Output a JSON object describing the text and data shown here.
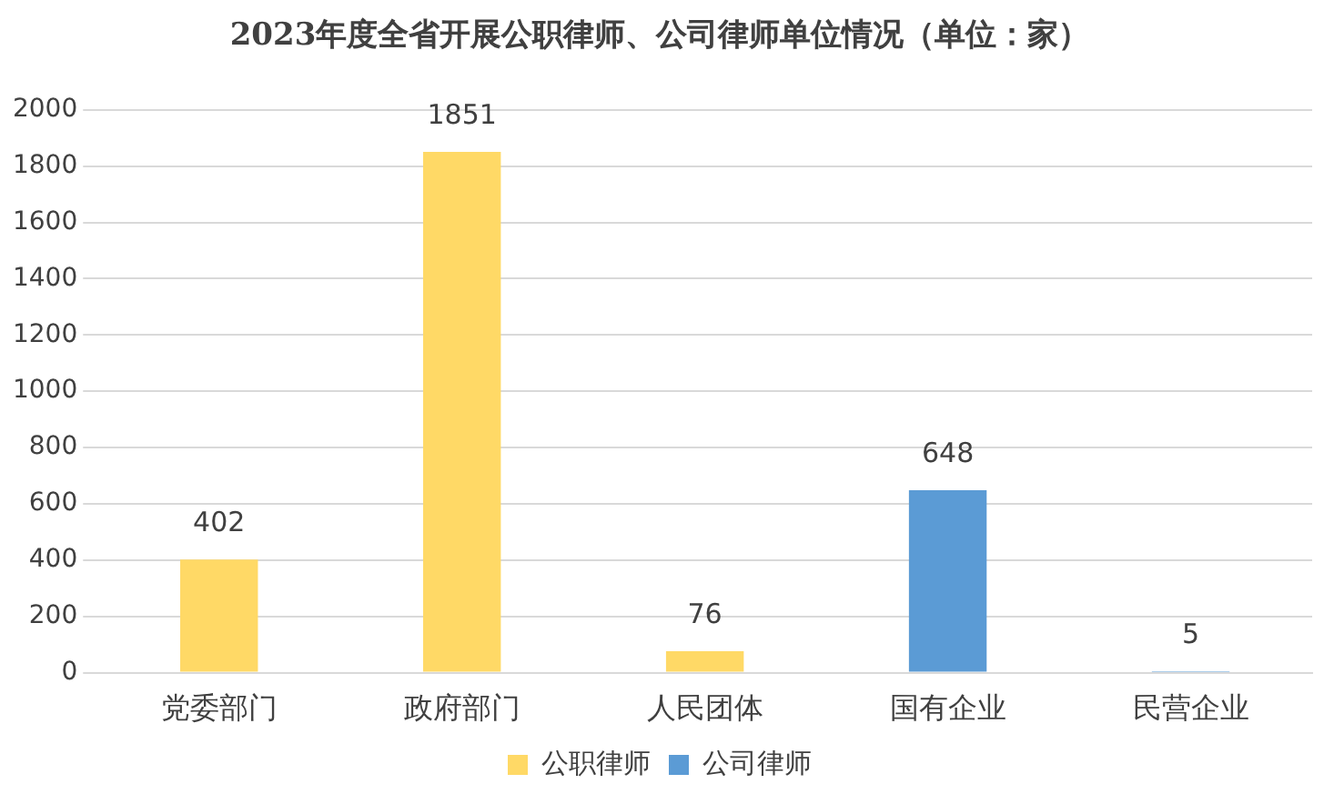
{
  "chart_data": {
    "type": "bar",
    "title": "2023年度全省开展公职律师、公司律师单位情况（单位：家）",
    "categories": [
      "党委部门",
      "政府部门",
      "人民团体",
      "国有企业",
      "民营企业"
    ],
    "series": [
      {
        "name": "公职律师",
        "color": "#ffd966",
        "values": [
          402,
          1851,
          76,
          null,
          null
        ]
      },
      {
        "name": "公司律师",
        "color": "#5b9bd5",
        "values": [
          null,
          null,
          null,
          648,
          5
        ]
      }
    ],
    "ylim": [
      0,
      2000
    ],
    "yticks": [
      0,
      200,
      400,
      600,
      800,
      1000,
      1200,
      1400,
      1600,
      1800,
      2000
    ],
    "grid": "y",
    "legend": "bottom",
    "data_labels": true
  }
}
